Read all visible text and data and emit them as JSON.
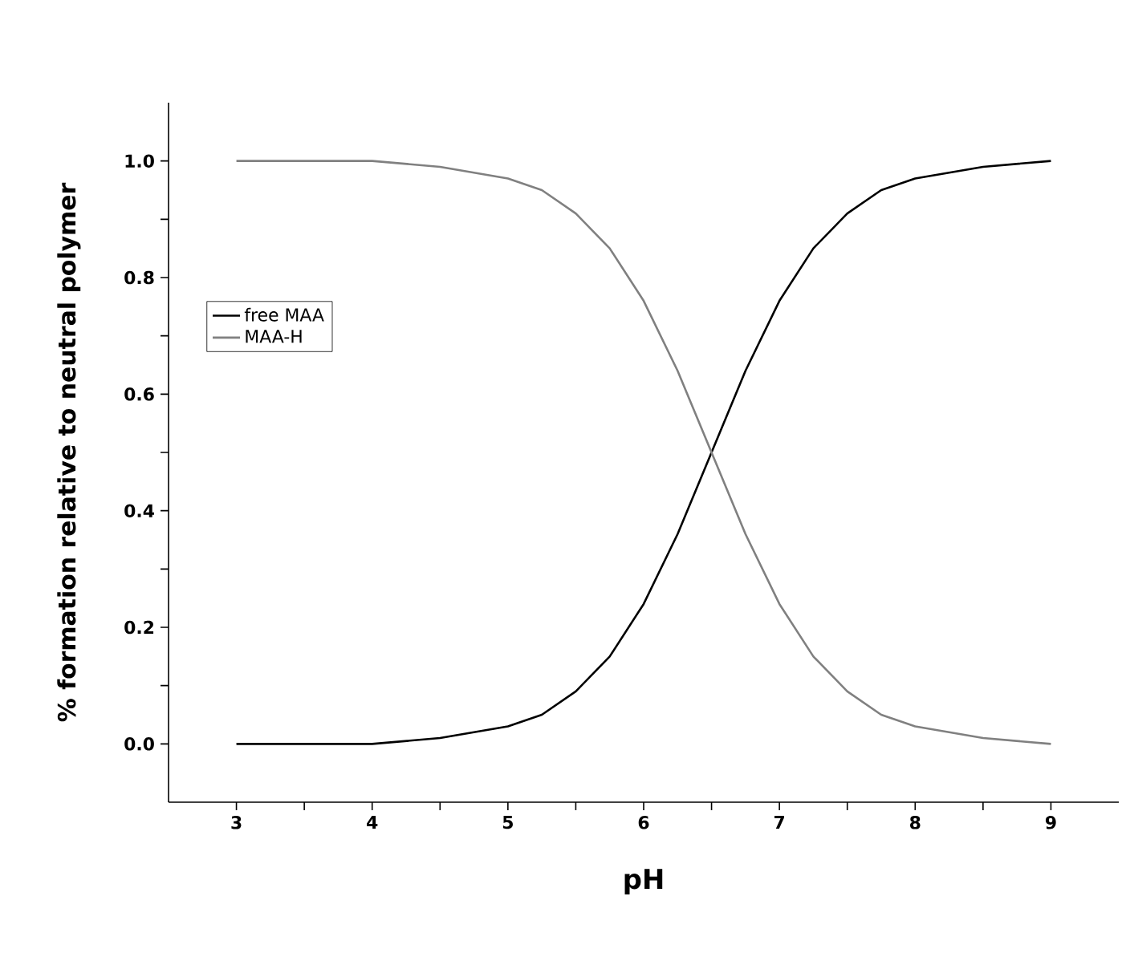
{
  "chart_data": {
    "type": "line",
    "xlabel": "pH",
    "ylabel": "% formation relative to neutral polymer",
    "x": [
      3,
      3.5,
      4,
      4.5,
      5,
      5.25,
      5.5,
      5.75,
      6,
      6.25,
      6.5,
      6.75,
      7,
      7.25,
      7.5,
      7.75,
      8,
      8.5,
      9
    ],
    "series": [
      {
        "name": "free MAA",
        "color": "#000000",
        "values": [
          0.0,
          0.0,
          0.0,
          0.01,
          0.03,
          0.05,
          0.09,
          0.15,
          0.24,
          0.36,
          0.5,
          0.64,
          0.76,
          0.85,
          0.91,
          0.95,
          0.97,
          0.99,
          1.0
        ]
      },
      {
        "name": "MAA-H",
        "color": "#808080",
        "values": [
          1.0,
          1.0,
          1.0,
          0.99,
          0.97,
          0.95,
          0.91,
          0.85,
          0.76,
          0.64,
          0.5,
          0.36,
          0.24,
          0.15,
          0.09,
          0.05,
          0.03,
          0.01,
          0.0
        ]
      }
    ],
    "xlim": [
      2.5,
      9.5
    ],
    "xticks": [
      3,
      {
        "value": 3.5,
        "label": null
      },
      4,
      {
        "value": 4.5,
        "label": null
      },
      5,
      {
        "value": 5.5,
        "label": null
      },
      6,
      {
        "value": 6.5,
        "label": null
      },
      7,
      {
        "value": 7.5,
        "label": null
      },
      8,
      {
        "value": 8.5,
        "label": null
      },
      9
    ],
    "ylim": [
      -0.1,
      1.1
    ],
    "yticks": [
      {
        "value": 0,
        "label": "0.0"
      },
      {
        "value": 0.1,
        "label": null
      },
      {
        "value": 0.2,
        "label": "0.2"
      },
      {
        "value": 0.3,
        "label": null
      },
      {
        "value": 0.4,
        "label": "0.4"
      },
      {
        "value": 0.5,
        "label": null
      },
      {
        "value": 0.6,
        "label": "0.6"
      },
      {
        "value": 0.7,
        "label": null
      },
      {
        "value": 0.8,
        "label": "0.8"
      },
      {
        "value": 0.9,
        "label": null
      },
      {
        "value": 1,
        "label": "1.0"
      }
    ],
    "grid": false,
    "legend": "left",
    "marker": "none",
    "line_style": "solid"
  }
}
